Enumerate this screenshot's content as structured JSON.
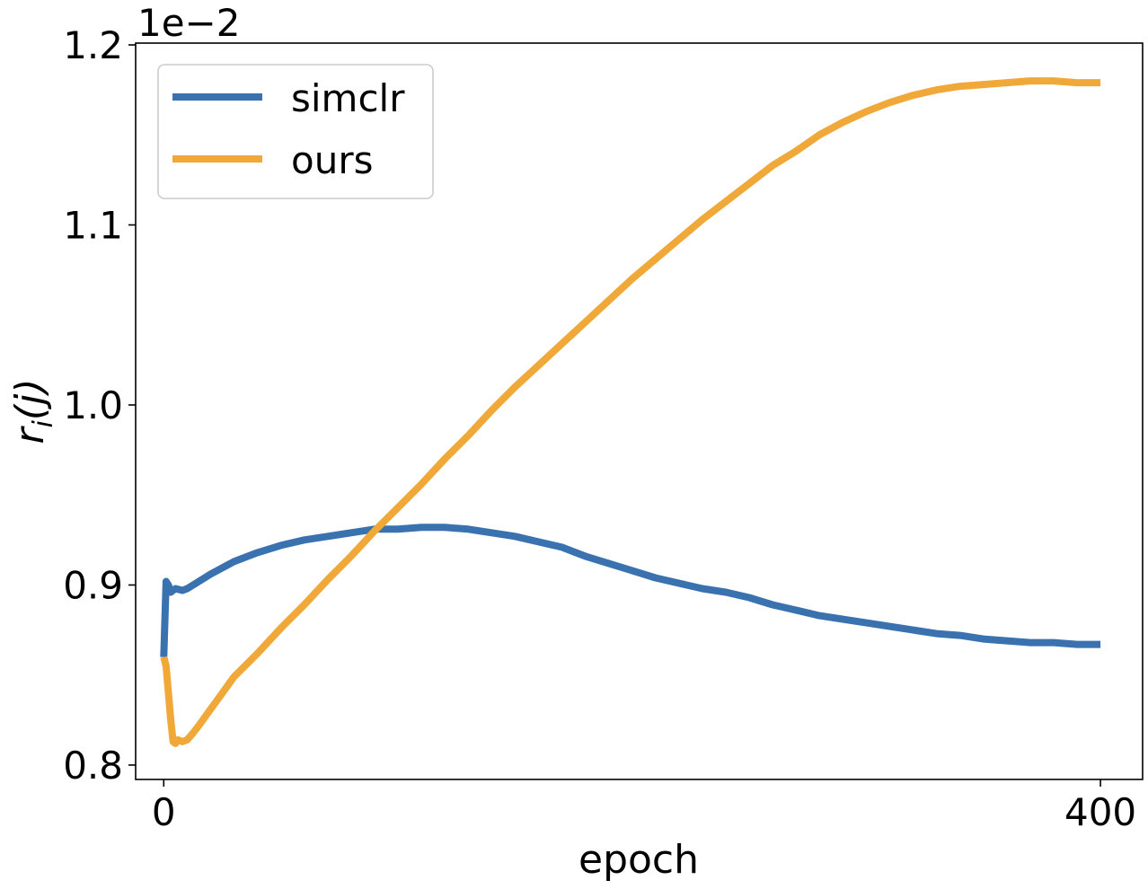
{
  "chart_data": {
    "type": "line",
    "xlabel": "epoch",
    "ylabel_base": "r",
    "ylabel_sub": "i",
    "ylabel_arg": "(j)",
    "offset_text": "1e−2",
    "xlim": [
      -12,
      418
    ],
    "ylim": [
      0.792,
      1.201
    ],
    "xticks": [
      0,
      400
    ],
    "xtick_labels": [
      "0",
      "400"
    ],
    "yticks": [
      0.8,
      0.9,
      1.0,
      1.1,
      1.2
    ],
    "ytick_labels": [
      "0.8",
      "0.9",
      "1.0",
      "1.1",
      "1.2"
    ],
    "grid": false,
    "legend_position": "upper-left",
    "series": [
      {
        "name": "simclr",
        "color": "#3a72b0",
        "x": [
          0,
          1,
          2,
          3,
          5,
          8,
          10,
          15,
          20,
          30,
          40,
          50,
          60,
          70,
          80,
          90,
          100,
          110,
          120,
          130,
          140,
          150,
          160,
          170,
          180,
          190,
          200,
          210,
          220,
          230,
          240,
          250,
          260,
          270,
          280,
          290,
          300,
          310,
          320,
          330,
          340,
          350,
          360,
          370,
          380,
          390,
          400
        ],
        "y": [
          0.86,
          0.902,
          0.9,
          0.896,
          0.898,
          0.897,
          0.898,
          0.902,
          0.906,
          0.913,
          0.918,
          0.922,
          0.925,
          0.927,
          0.929,
          0.931,
          0.931,
          0.932,
          0.932,
          0.931,
          0.929,
          0.927,
          0.924,
          0.921,
          0.916,
          0.912,
          0.908,
          0.904,
          0.901,
          0.898,
          0.896,
          0.893,
          0.889,
          0.886,
          0.883,
          0.881,
          0.879,
          0.877,
          0.875,
          0.873,
          0.872,
          0.87,
          0.869,
          0.868,
          0.868,
          0.867,
          0.867
        ]
      },
      {
        "name": "ours",
        "color": "#f0a838",
        "x": [
          0,
          1,
          2,
          3,
          4,
          5,
          6,
          8,
          10,
          12,
          15,
          20,
          25,
          30,
          40,
          50,
          60,
          70,
          80,
          90,
          100,
          110,
          120,
          130,
          140,
          150,
          160,
          170,
          180,
          190,
          200,
          210,
          220,
          230,
          240,
          250,
          260,
          270,
          280,
          290,
          300,
          310,
          320,
          330,
          340,
          350,
          360,
          370,
          380,
          390,
          400
        ],
        "y": [
          0.86,
          0.855,
          0.84,
          0.825,
          0.813,
          0.812,
          0.814,
          0.813,
          0.814,
          0.817,
          0.822,
          0.831,
          0.84,
          0.849,
          0.862,
          0.876,
          0.889,
          0.903,
          0.916,
          0.93,
          0.943,
          0.956,
          0.97,
          0.983,
          0.997,
          1.01,
          1.022,
          1.034,
          1.046,
          1.058,
          1.07,
          1.081,
          1.092,
          1.103,
          1.113,
          1.123,
          1.133,
          1.141,
          1.15,
          1.157,
          1.163,
          1.168,
          1.172,
          1.175,
          1.177,
          1.178,
          1.179,
          1.18,
          1.18,
          1.179,
          1.179
        ]
      }
    ]
  }
}
